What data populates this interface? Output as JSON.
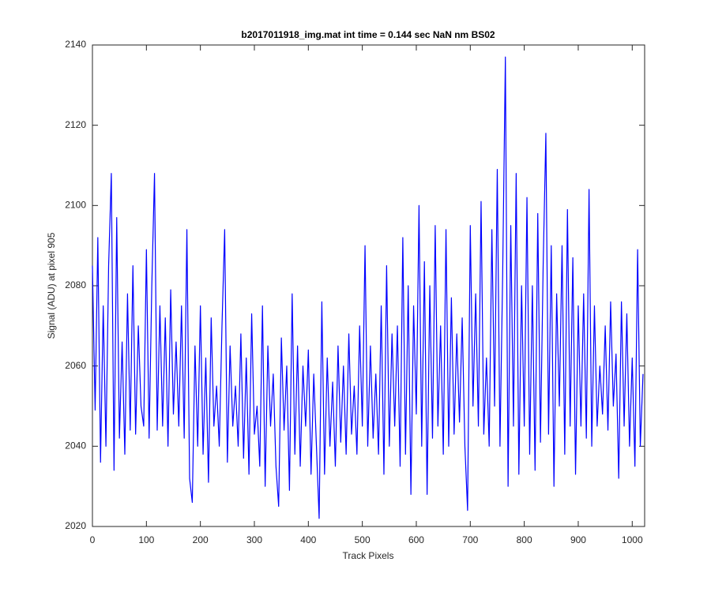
{
  "chart_data": {
    "type": "line",
    "title": "b2017011918_img.mat int time = 0.144 sec  NaN nm BS02",
    "x_label": "Track Pixels",
    "y_label": "Signal (ADU) at pixel 905",
    "xlim": [
      0,
      1023
    ],
    "ylim": [
      2020,
      2140
    ],
    "xticks": [
      0,
      100,
      200,
      300,
      400,
      500,
      600,
      700,
      800,
      900,
      1000
    ],
    "yticks": [
      2020,
      2040,
      2060,
      2080,
      2100,
      2120,
      2140
    ],
    "grid": false,
    "x": [
      0,
      5,
      10,
      15,
      20,
      25,
      30,
      35,
      40,
      45,
      50,
      55,
      60,
      65,
      70,
      75,
      80,
      85,
      90,
      95,
      100,
      105,
      110,
      115,
      120,
      125,
      130,
      135,
      140,
      145,
      150,
      155,
      160,
      165,
      170,
      175,
      180,
      185,
      190,
      195,
      200,
      205,
      210,
      215,
      220,
      225,
      230,
      235,
      240,
      245,
      250,
      255,
      260,
      265,
      270,
      275,
      280,
      285,
      290,
      295,
      300,
      305,
      310,
      315,
      320,
      325,
      330,
      335,
      340,
      345,
      350,
      355,
      360,
      365,
      370,
      375,
      380,
      385,
      390,
      395,
      400,
      405,
      410,
      415,
      420,
      425,
      430,
      435,
      440,
      445,
      450,
      455,
      460,
      465,
      470,
      475,
      480,
      485,
      490,
      495,
      500,
      505,
      510,
      515,
      520,
      525,
      530,
      535,
      540,
      545,
      550,
      555,
      560,
      565,
      570,
      575,
      580,
      585,
      590,
      595,
      600,
      605,
      610,
      615,
      620,
      625,
      630,
      635,
      640,
      645,
      650,
      655,
      660,
      665,
      670,
      675,
      680,
      685,
      690,
      695,
      700,
      705,
      710,
      715,
      720,
      725,
      730,
      735,
      740,
      745,
      750,
      755,
      760,
      765,
      770,
      775,
      780,
      785,
      790,
      795,
      800,
      805,
      810,
      815,
      820,
      825,
      830,
      835,
      840,
      845,
      850,
      855,
      860,
      865,
      870,
      875,
      880,
      885,
      890,
      895,
      900,
      905,
      910,
      915,
      920,
      925,
      930,
      935,
      940,
      945,
      950,
      955,
      960,
      965,
      970,
      975,
      980,
      985,
      990,
      995,
      1000,
      1005,
      1010,
      1015,
      1020
    ],
    "series": [
      {
        "color": "#0000ff",
        "values": [
          2085,
          2049,
          2092,
          2036,
          2075,
          2040,
          2085,
          2108,
          2034,
          2097,
          2042,
          2066,
          2038,
          2078,
          2044,
          2085,
          2043,
          2070,
          2050,
          2045,
          2089,
          2042,
          2080,
          2108,
          2044,
          2075,
          2045,
          2072,
          2040,
          2079,
          2048,
          2066,
          2045,
          2075,
          2042,
          2094,
          2032,
          2026,
          2065,
          2040,
          2075,
          2038,
          2062,
          2031,
          2072,
          2045,
          2055,
          2040,
          2070,
          2094,
          2036,
          2065,
          2045,
          2055,
          2040,
          2068,
          2037,
          2062,
          2033,
          2073,
          2043,
          2050,
          2035,
          2075,
          2030,
          2065,
          2045,
          2058,
          2035,
          2025,
          2067,
          2044,
          2060,
          2029,
          2078,
          2038,
          2065,
          2035,
          2060,
          2045,
          2064,
          2033,
          2058,
          2040,
          2022,
          2076,
          2033,
          2062,
          2040,
          2056,
          2035,
          2065,
          2041,
          2060,
          2038,
          2068,
          2043,
          2055,
          2038,
          2070,
          2045,
          2090,
          2040,
          2065,
          2042,
          2058,
          2038,
          2075,
          2033,
          2085,
          2040,
          2068,
          2045,
          2070,
          2035,
          2092,
          2038,
          2080,
          2028,
          2075,
          2048,
          2100,
          2040,
          2086,
          2028,
          2080,
          2042,
          2095,
          2045,
          2070,
          2038,
          2094,
          2040,
          2077,
          2043,
          2068,
          2046,
          2072,
          2040,
          2024,
          2095,
          2050,
          2078,
          2045,
          2101,
          2043,
          2062,
          2040,
          2094,
          2050,
          2109,
          2040,
          2083,
          2137,
          2030,
          2095,
          2045,
          2108,
          2033,
          2080,
          2045,
          2102,
          2038,
          2080,
          2034,
          2098,
          2041,
          2085,
          2118,
          2043,
          2090,
          2030,
          2078,
          2050,
          2090,
          2038,
          2099,
          2045,
          2087,
          2033,
          2075,
          2045,
          2078,
          2042,
          2104,
          2040,
          2075,
          2045,
          2060,
          2048,
          2070,
          2044,
          2076,
          2050,
          2063,
          2032,
          2076,
          2045,
          2073,
          2040,
          2062,
          2035,
          2089,
          2040,
          2058
        ]
      }
    ]
  }
}
